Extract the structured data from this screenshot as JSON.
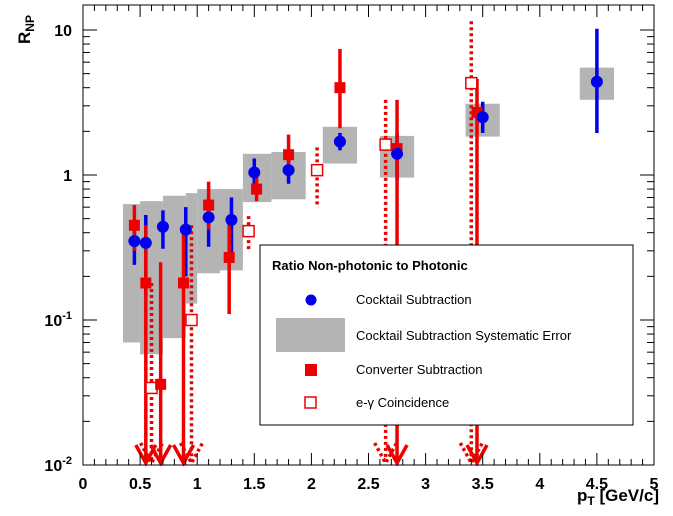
{
  "chart_data": {
    "type": "scatter",
    "title": "",
    "xlabel": "p",
    "xlabel_sub": "T",
    "xlabel_unit": " [GeV/c]",
    "ylabel": "R",
    "ylabel_sub": "NP",
    "xlim": [
      0,
      5
    ],
    "ylim": [
      0.01,
      15
    ],
    "yscale": "log",
    "grid": false,
    "x_ticks": [
      "0",
      "0.5",
      "1",
      "1.5",
      "2",
      "2.5",
      "3",
      "3.5",
      "4",
      "4.5",
      "5"
    ],
    "y_ticks": [
      {
        "base": "10",
        "exp": "-2"
      },
      {
        "base": "10",
        "exp": "-1"
      },
      {
        "base": "1",
        "exp": ""
      },
      {
        "base": "10",
        "exp": ""
      }
    ],
    "legend": {
      "title": "Ratio Non-photonic to Photonic",
      "entries": [
        {
          "label": "Cocktail Subtraction"
        },
        {
          "label": "Cocktail Subtraction Systematic Error"
        },
        {
          "label": "Converter Subtraction"
        },
        {
          "label": "e-γ Coincidence"
        }
      ],
      "placement": "lower-right"
    },
    "colors": {
      "blue": "#0000ee",
      "red": "#ee0000",
      "gray": "#b4b4b4"
    },
    "series": [
      {
        "name": "Cocktail Subtraction",
        "marker": "circle",
        "points": [
          {
            "x": 0.45,
            "y": 0.35,
            "lo": 0.24,
            "hi": 0.46
          },
          {
            "x": 0.55,
            "y": 0.34,
            "lo": 0.15,
            "hi": 0.53
          },
          {
            "x": 0.7,
            "y": 0.44,
            "lo": 0.31,
            "hi": 0.57
          },
          {
            "x": 0.9,
            "y": 0.42,
            "lo": 0.2,
            "hi": 0.6
          },
          {
            "x": 1.1,
            "y": 0.51,
            "lo": 0.32,
            "hi": 0.7
          },
          {
            "x": 1.3,
            "y": 0.49,
            "lo": 0.28,
            "hi": 0.7
          },
          {
            "x": 1.5,
            "y": 1.04,
            "lo": 0.82,
            "hi": 1.3
          },
          {
            "x": 1.8,
            "y": 1.08,
            "lo": 0.87,
            "hi": 1.28
          },
          {
            "x": 2.25,
            "y": 1.7,
            "lo": 1.48,
            "hi": 1.95
          },
          {
            "x": 2.75,
            "y": 1.4,
            "lo": 0.92,
            "hi": 1.95
          },
          {
            "x": 3.5,
            "y": 2.5,
            "lo": 1.95,
            "hi": 3.2
          },
          {
            "x": 4.5,
            "y": 4.4,
            "lo": 1.95,
            "hi": 10.2
          }
        ]
      },
      {
        "name": "Cocktail Subtraction Systematic Error",
        "marker": "band",
        "bands": [
          {
            "x0": 0.35,
            "x1": 0.5,
            "lo": 0.07,
            "hi": 0.63
          },
          {
            "x0": 0.5,
            "x1": 0.7,
            "lo": 0.058,
            "hi": 0.66
          },
          {
            "x0": 0.7,
            "x1": 0.9,
            "lo": 0.075,
            "hi": 0.72
          },
          {
            "x0": 0.9,
            "x1": 1.0,
            "lo": 0.13,
            "hi": 0.75
          },
          {
            "x0": 1.0,
            "x1": 1.2,
            "lo": 0.21,
            "hi": 0.8
          },
          {
            "x0": 1.2,
            "x1": 1.4,
            "lo": 0.22,
            "hi": 0.8
          },
          {
            "x0": 1.4,
            "x1": 1.65,
            "lo": 0.65,
            "hi": 1.4
          },
          {
            "x0": 1.65,
            "x1": 1.95,
            "lo": 0.68,
            "hi": 1.44
          },
          {
            "x0": 2.1,
            "x1": 2.4,
            "lo": 1.2,
            "hi": 2.15
          },
          {
            "x0": 2.6,
            "x1": 2.9,
            "lo": 0.96,
            "hi": 1.86
          },
          {
            "x0": 3.35,
            "x1": 3.65,
            "lo": 1.84,
            "hi": 3.1
          },
          {
            "x0": 4.35,
            "x1": 4.65,
            "lo": 3.3,
            "hi": 5.5
          }
        ]
      },
      {
        "name": "Converter Subtraction",
        "marker": "filled-square",
        "points": [
          {
            "x": 0.45,
            "y": 0.45,
            "lo": 0.3,
            "hi": 0.62
          },
          {
            "x": 0.55,
            "y": 0.18,
            "lo": 0.012,
            "hi": 0.45,
            "arrow": true
          },
          {
            "x": 0.68,
            "y": 0.036,
            "lo": 0.012,
            "hi": 0.25,
            "arrow": true
          },
          {
            "x": 0.88,
            "y": 0.18,
            "lo": 0.012,
            "hi": 0.45,
            "arrow": true
          },
          {
            "x": 1.1,
            "y": 0.62,
            "lo": 0.42,
            "hi": 0.9
          },
          {
            "x": 1.28,
            "y": 0.27,
            "lo": 0.11,
            "hi": 0.48
          },
          {
            "x": 1.52,
            "y": 0.8,
            "lo": 0.66,
            "hi": 1.0
          },
          {
            "x": 1.8,
            "y": 1.38,
            "lo": 1.1,
            "hi": 1.9
          },
          {
            "x": 2.25,
            "y": 4.0,
            "lo": 2.1,
            "hi": 7.4
          },
          {
            "x": 2.75,
            "y": 1.52,
            "lo": 0.012,
            "hi": 3.3,
            "arrow": true
          },
          {
            "x": 3.45,
            "y": 2.7,
            "lo": 0.012,
            "hi": 4.6,
            "arrow": true
          }
        ]
      },
      {
        "name": "e-γ Coincidence",
        "marker": "open-square",
        "points": [
          {
            "x": 0.6,
            "y": 0.034,
            "lo": 0.012,
            "hi": 0.18,
            "arrow": true
          },
          {
            "x": 0.95,
            "y": 0.1,
            "lo": 0.012,
            "hi": 0.45,
            "arrow": true
          },
          {
            "x": 1.45,
            "y": 0.41,
            "lo": 0.3,
            "hi": 0.52
          },
          {
            "x": 2.05,
            "y": 1.08,
            "lo": 0.6,
            "hi": 1.55
          },
          {
            "x": 2.65,
            "y": 1.62,
            "lo": 0.012,
            "hi": 3.3,
            "arrow": true
          },
          {
            "x": 3.4,
            "y": 4.3,
            "lo": 0.012,
            "hi": 11.5,
            "arrow": true
          }
        ]
      }
    ]
  }
}
